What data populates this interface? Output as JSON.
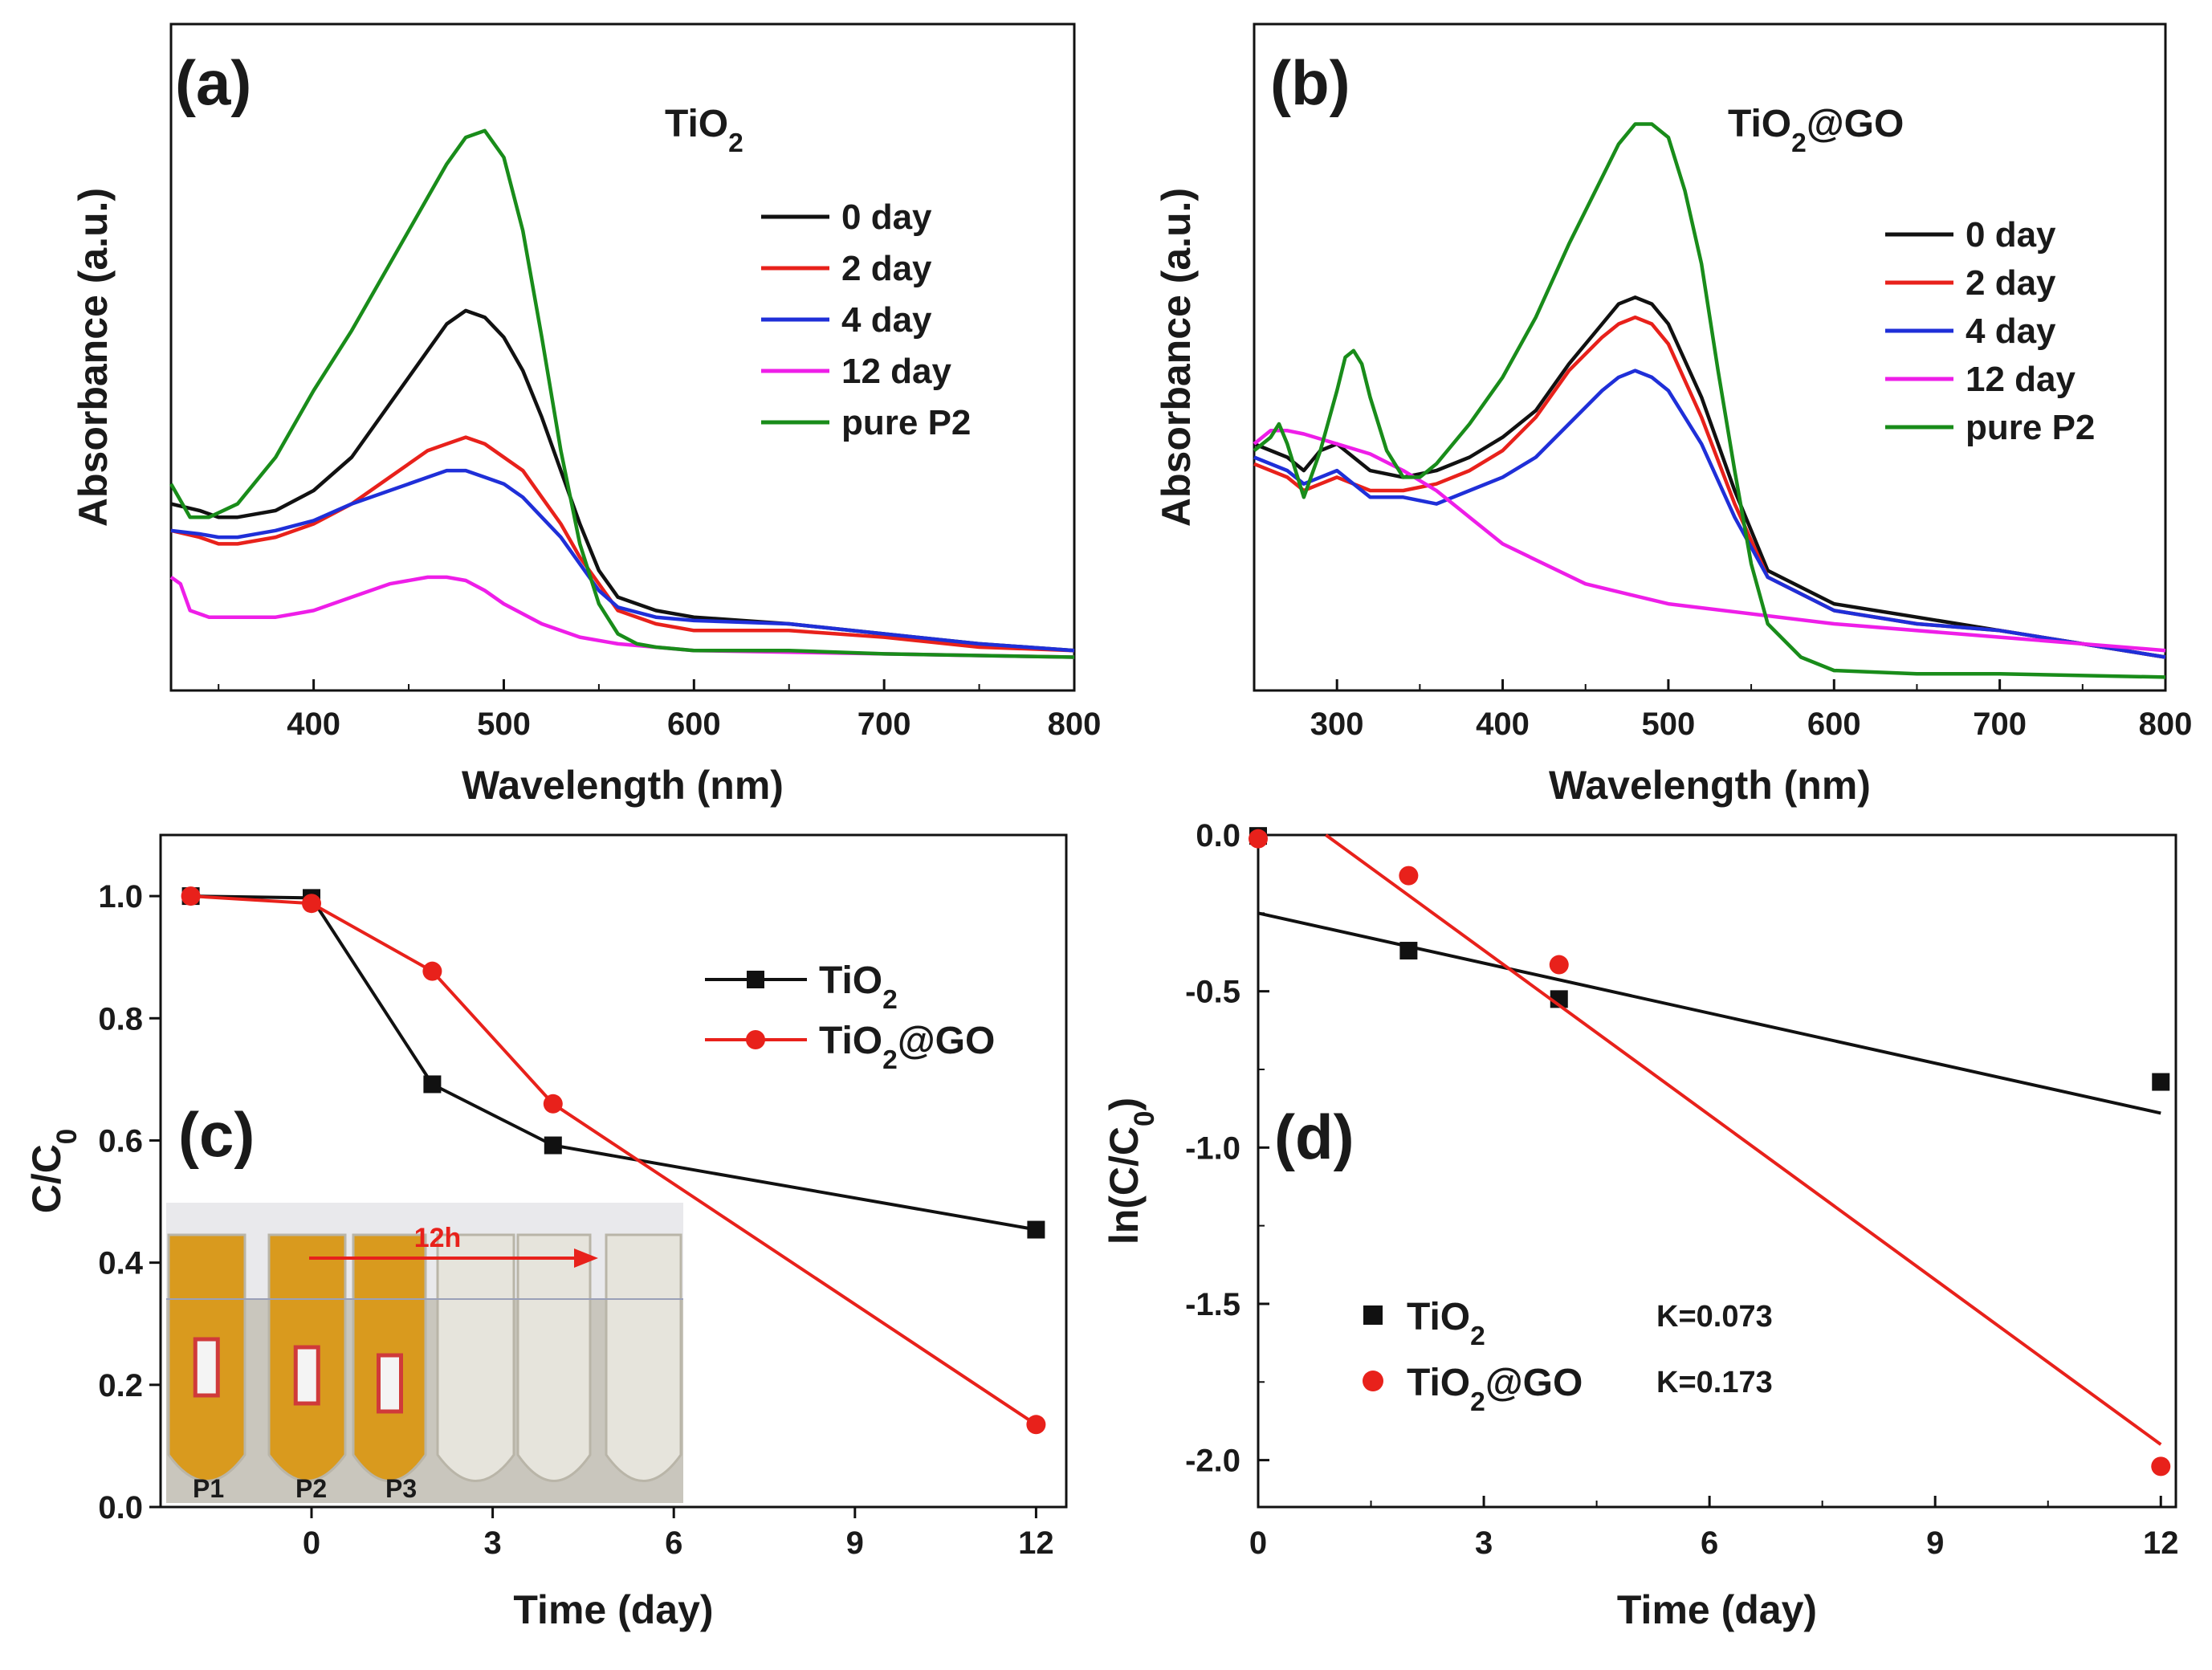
{
  "chart_data": [
    {
      "panel": "(a)",
      "type": "line",
      "title": "TiO2",
      "xlabel": "Wavelength (nm)",
      "ylabel": "Absorbance (a.u.)",
      "xlim": [
        325,
        800
      ],
      "ylim": [
        0,
        1
      ],
      "xticks": [
        400,
        500,
        600,
        700,
        800
      ],
      "series": [
        {
          "name": "0 day",
          "color": "#111111",
          "x": [
            325,
            340,
            350,
            360,
            380,
            400,
            420,
            440,
            460,
            470,
            480,
            490,
            500,
            510,
            520,
            530,
            540,
            550,
            560,
            580,
            600,
            650,
            700,
            750,
            800
          ],
          "y": [
            0.28,
            0.27,
            0.26,
            0.26,
            0.27,
            0.3,
            0.35,
            0.43,
            0.51,
            0.55,
            0.57,
            0.56,
            0.53,
            0.48,
            0.41,
            0.33,
            0.25,
            0.18,
            0.14,
            0.12,
            0.11,
            0.1,
            0.085,
            0.07,
            0.06
          ]
        },
        {
          "name": "2 day",
          "color": "#e8211b",
          "x": [
            325,
            340,
            350,
            360,
            380,
            400,
            420,
            440,
            460,
            470,
            480,
            490,
            500,
            510,
            520,
            530,
            540,
            550,
            560,
            580,
            600,
            650,
            700,
            750,
            800
          ],
          "y": [
            0.24,
            0.23,
            0.22,
            0.22,
            0.23,
            0.25,
            0.28,
            0.32,
            0.36,
            0.37,
            0.38,
            0.37,
            0.35,
            0.33,
            0.29,
            0.25,
            0.2,
            0.16,
            0.12,
            0.1,
            0.09,
            0.09,
            0.08,
            0.065,
            0.06
          ]
        },
        {
          "name": "4 day",
          "color": "#1f2fd8",
          "x": [
            325,
            340,
            350,
            360,
            380,
            400,
            420,
            440,
            460,
            470,
            480,
            490,
            500,
            510,
            520,
            530,
            540,
            550,
            560,
            580,
            600,
            650,
            700,
            750,
            800
          ],
          "y": [
            0.24,
            0.235,
            0.23,
            0.23,
            0.24,
            0.255,
            0.28,
            0.3,
            0.32,
            0.33,
            0.33,
            0.32,
            0.31,
            0.29,
            0.26,
            0.23,
            0.19,
            0.15,
            0.125,
            0.11,
            0.105,
            0.1,
            0.085,
            0.07,
            0.06
          ]
        },
        {
          "name": "12 day",
          "color": "#ee1ee8",
          "x": [
            325,
            330,
            335,
            345,
            360,
            380,
            400,
            420,
            440,
            460,
            470,
            480,
            490,
            500,
            520,
            540,
            560,
            600,
            700,
            800
          ],
          "y": [
            0.17,
            0.16,
            0.12,
            0.11,
            0.11,
            0.11,
            0.12,
            0.14,
            0.16,
            0.17,
            0.17,
            0.165,
            0.15,
            0.13,
            0.1,
            0.08,
            0.07,
            0.06,
            0.055,
            0.05
          ]
        },
        {
          "name": "pure P2",
          "color": "#198c1a",
          "x": [
            325,
            335,
            345,
            360,
            380,
            400,
            420,
            440,
            460,
            470,
            480,
            490,
            500,
            510,
            520,
            530,
            540,
            550,
            560,
            570,
            580,
            600,
            650,
            700,
            800
          ],
          "y": [
            0.31,
            0.26,
            0.26,
            0.28,
            0.35,
            0.45,
            0.54,
            0.64,
            0.74,
            0.79,
            0.83,
            0.84,
            0.8,
            0.69,
            0.53,
            0.36,
            0.22,
            0.13,
            0.085,
            0.07,
            0.065,
            0.06,
            0.06,
            0.055,
            0.05
          ]
        }
      ]
    },
    {
      "panel": "(b)",
      "type": "line",
      "title": "TiO2@GO",
      "xlabel": "Wavelength (nm)",
      "ylabel": "Absorbance (a.u.)",
      "xlim": [
        250,
        800
      ],
      "ylim": [
        0,
        1
      ],
      "xticks": [
        300,
        400,
        500,
        600,
        700,
        800
      ],
      "series": [
        {
          "name": "0 day",
          "color": "#111111",
          "x": [
            250,
            270,
            280,
            290,
            300,
            310,
            320,
            340,
            360,
            380,
            400,
            420,
            440,
            460,
            470,
            480,
            490,
            500,
            520,
            540,
            560,
            600,
            650,
            700,
            800
          ],
          "y": [
            0.37,
            0.35,
            0.33,
            0.36,
            0.37,
            0.35,
            0.33,
            0.32,
            0.33,
            0.35,
            0.38,
            0.42,
            0.49,
            0.55,
            0.58,
            0.59,
            0.58,
            0.55,
            0.44,
            0.3,
            0.18,
            0.13,
            0.11,
            0.09,
            0.05
          ]
        },
        {
          "name": "2 day",
          "color": "#e8211b",
          "x": [
            250,
            270,
            280,
            290,
            300,
            310,
            320,
            340,
            360,
            380,
            400,
            420,
            440,
            460,
            470,
            480,
            490,
            500,
            520,
            540,
            560,
            600,
            650,
            700,
            800
          ],
          "y": [
            0.34,
            0.32,
            0.3,
            0.31,
            0.32,
            0.31,
            0.3,
            0.3,
            0.31,
            0.33,
            0.36,
            0.41,
            0.48,
            0.53,
            0.55,
            0.56,
            0.55,
            0.52,
            0.41,
            0.28,
            0.17,
            0.12,
            0.1,
            0.09,
            0.05
          ]
        },
        {
          "name": "4 day",
          "color": "#1f2fd8",
          "x": [
            250,
            270,
            280,
            290,
            300,
            310,
            320,
            340,
            360,
            380,
            400,
            420,
            440,
            460,
            470,
            480,
            490,
            500,
            520,
            540,
            560,
            600,
            650,
            700,
            800
          ],
          "y": [
            0.35,
            0.33,
            0.31,
            0.32,
            0.33,
            0.31,
            0.29,
            0.29,
            0.28,
            0.3,
            0.32,
            0.35,
            0.4,
            0.45,
            0.47,
            0.48,
            0.47,
            0.45,
            0.37,
            0.26,
            0.17,
            0.12,
            0.1,
            0.09,
            0.05
          ]
        },
        {
          "name": "12 day",
          "color": "#ee1ee8",
          "x": [
            250,
            260,
            270,
            280,
            300,
            320,
            340,
            360,
            380,
            400,
            450,
            500,
            600,
            700,
            800
          ],
          "y": [
            0.37,
            0.39,
            0.39,
            0.385,
            0.37,
            0.355,
            0.33,
            0.3,
            0.26,
            0.22,
            0.16,
            0.13,
            0.1,
            0.08,
            0.06
          ]
        },
        {
          "name": "pure P2",
          "color": "#198c1a",
          "x": [
            250,
            260,
            265,
            270,
            280,
            290,
            300,
            305,
            310,
            315,
            320,
            330,
            340,
            350,
            360,
            380,
            400,
            420,
            440,
            460,
            470,
            480,
            490,
            500,
            510,
            520,
            530,
            540,
            550,
            560,
            580,
            600,
            650,
            700,
            800
          ],
          "y": [
            0.36,
            0.38,
            0.4,
            0.37,
            0.29,
            0.36,
            0.45,
            0.5,
            0.51,
            0.49,
            0.44,
            0.36,
            0.32,
            0.32,
            0.34,
            0.4,
            0.47,
            0.56,
            0.67,
            0.77,
            0.82,
            0.85,
            0.85,
            0.83,
            0.75,
            0.64,
            0.48,
            0.33,
            0.19,
            0.1,
            0.05,
            0.03,
            0.025,
            0.025,
            0.02
          ]
        }
      ]
    },
    {
      "panel": "(c)",
      "type": "line",
      "xlabel": "Time (day)",
      "ylabel": "C/C0",
      "xlim": [
        -2.5,
        12.5
      ],
      "ylim": [
        0,
        1.1
      ],
      "xticks": [
        0,
        3,
        6,
        9,
        12
      ],
      "yticks": [
        0.0,
        0.2,
        0.4,
        0.6,
        0.8,
        1.0
      ],
      "series": [
        {
          "name": "TiO2",
          "color": "#111111",
          "marker": "square",
          "x": [
            -2,
            0,
            2,
            4,
            12
          ],
          "y": [
            1.0,
            0.997,
            0.692,
            0.592,
            0.454
          ]
        },
        {
          "name": "TiO2@GO",
          "color": "#e8211b",
          "marker": "circle",
          "x": [
            -2,
            0,
            2,
            4,
            12
          ],
          "y": [
            1.0,
            0.988,
            0.877,
            0.66,
            0.135
          ]
        }
      ],
      "inset": {
        "arrow_label": "12h",
        "tube_labels": [
          "P1",
          "P2",
          "P3"
        ]
      }
    },
    {
      "panel": "(d)",
      "type": "scatter",
      "xlabel": "Time (day)",
      "ylabel": "ln(C/C0)",
      "xlim": [
        0,
        12.2
      ],
      "ylim": [
        -2.15,
        0.0
      ],
      "xticks": [
        0,
        3,
        6,
        9,
        12
      ],
      "yticks": [
        0.0,
        -0.5,
        -1.0,
        -1.5,
        -2.0
      ],
      "series": [
        {
          "name": "TiO2",
          "color": "#111111",
          "marker": "square",
          "x": [
            0,
            2,
            4,
            12
          ],
          "y": [
            -0.003,
            -0.37,
            -0.525,
            -0.79
          ],
          "fit": [
            [
              0,
              -0.25
            ],
            [
              12,
              -0.89
            ]
          ],
          "k": "K=0.073"
        },
        {
          "name": "TiO2@GO",
          "color": "#e8211b",
          "marker": "circle",
          "x": [
            0,
            2,
            4,
            12
          ],
          "y": [
            -0.012,
            -0.13,
            -0.415,
            -2.02
          ],
          "fit": [
            [
              0.9,
              0.0
            ],
            [
              12,
              -1.95
            ]
          ],
          "k": "K=0.173"
        }
      ]
    }
  ],
  "inset_photo": {
    "tube_liquid_color": "#d99a1e",
    "clear_liquid_color": "#e6e4dc",
    "arrow_color": "#e8211b"
  }
}
